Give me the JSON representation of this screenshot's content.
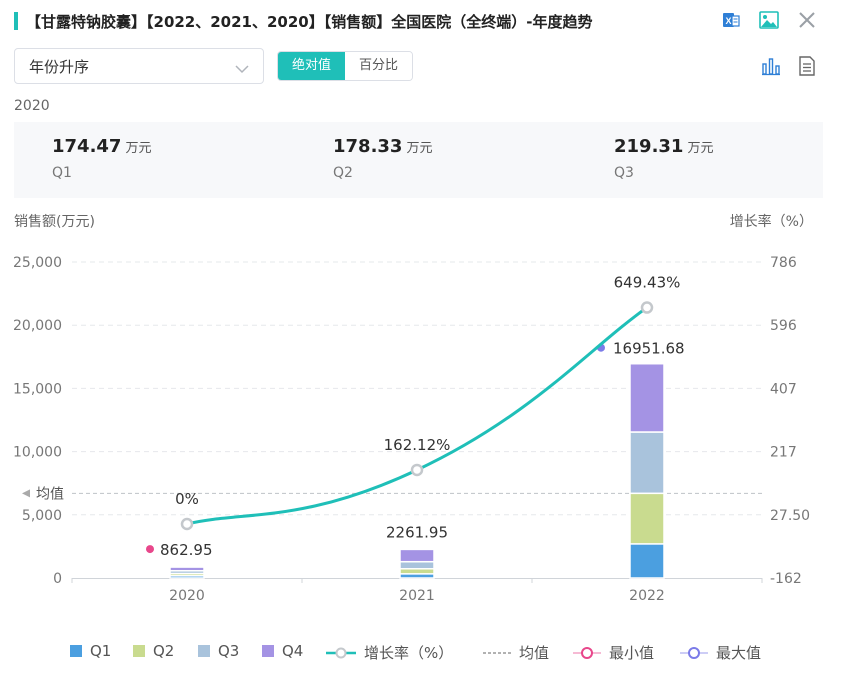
{
  "header": {
    "title": "【甘露特钠胶囊】【2022、2021、2020】【销售额】全国医院（全终端）-年度趋势"
  },
  "controls": {
    "sort_select": "年份升序",
    "seg_absolute": "绝对值",
    "seg_percent": "百分比"
  },
  "stats": {
    "year": "2020",
    "items": [
      {
        "value": "174.47",
        "unit": "万元",
        "quarter": "Q1"
      },
      {
        "value": "178.33",
        "unit": "万元",
        "quarter": "Q2"
      },
      {
        "value": "219.31",
        "unit": "万元",
        "quarter": "Q3"
      }
    ]
  },
  "colors": {
    "Q1": "#4b9fe0",
    "Q2": "#c9db8f",
    "Q3": "#a9c3dc",
    "Q4": "#a493e4",
    "growth": "#1fbfb8",
    "min": "#e8478b",
    "max": "#7b7be8",
    "accent": "#1fbfb8"
  },
  "chart_data": {
    "type": "bar",
    "stacked": true,
    "categories": [
      "2020",
      "2021",
      "2022"
    ],
    "series": [
      {
        "name": "Q1",
        "values": [
          174.47,
          330,
          2700
        ]
      },
      {
        "name": "Q2",
        "values": [
          178.33,
          400,
          4000
        ]
      },
      {
        "name": "Q3",
        "values": [
          219.31,
          560,
          4850
        ]
      },
      {
        "name": "Q4",
        "values": [
          290.84,
          971.95,
          5401.68
        ]
      }
    ],
    "totals": [
      862.95,
      2261.95,
      16951.68
    ],
    "total_labels": [
      "862.95",
      "2261.95",
      "16951.68"
    ],
    "growth": {
      "name": "增长率（%）",
      "values": [
        0,
        162.12,
        649.43
      ],
      "labels": [
        "0%",
        "162.12%",
        "649.43%"
      ]
    },
    "average": {
      "name": "均值",
      "label": "均值",
      "value": 6692.19
    },
    "min_label": "最小值",
    "max_label": "最大值",
    "ylabel": "销售额(万元)",
    "y2label": "增长率（%）",
    "ylim": [
      0,
      25000
    ],
    "y2lim": [
      -162,
      786
    ],
    "yticks": [
      "0",
      "5,000",
      "10,000",
      "15,000",
      "20,000",
      "25,000"
    ],
    "y2ticks": [
      "-162",
      "27.50",
      "217",
      "407",
      "596",
      "786"
    ],
    "legend": [
      "Q1",
      "Q2",
      "Q3",
      "Q4",
      "增长率（%）",
      "均值",
      "最小值",
      "最大值"
    ]
  }
}
